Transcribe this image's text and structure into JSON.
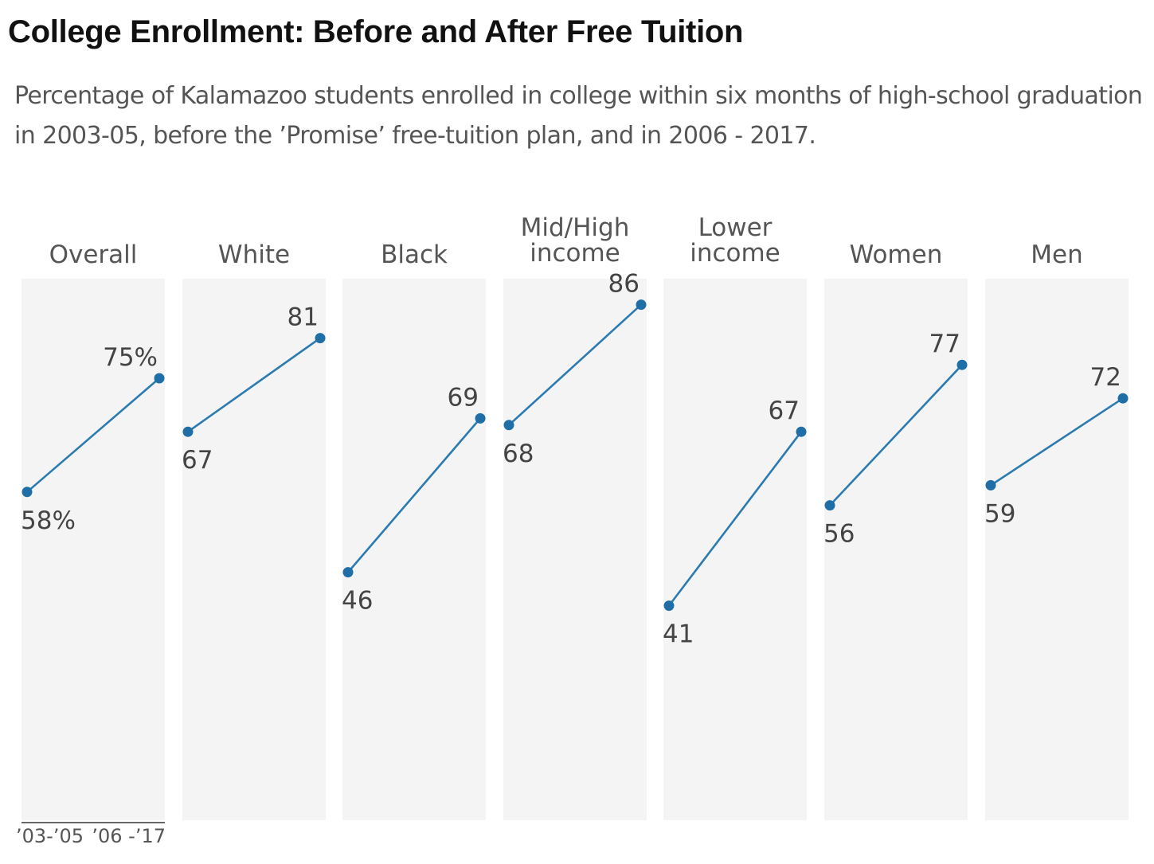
{
  "title": "College Enrollment: Before and After Free Tuition",
  "subtitle": "Percentage of Kalamazoo students enrolled in college within six months of high-school graduation in 2003-05, before the ’Promise’ free-tuition plan, and in 2006 - 2017.",
  "chart_data": {
    "type": "line",
    "categories": [
      "’03-’05",
      "’06 -’17"
    ],
    "ylim": [
      0,
      100
    ],
    "grid": false,
    "panels": [
      {
        "name": "Overall",
        "title_lines": [
          "Overall"
        ],
        "values": [
          58,
          75
        ],
        "labels": [
          "58%",
          "75%"
        ]
      },
      {
        "name": "White",
        "title_lines": [
          "White"
        ],
        "values": [
          67,
          81
        ],
        "labels": [
          "67",
          "81"
        ]
      },
      {
        "name": "Black",
        "title_lines": [
          "Black"
        ],
        "values": [
          46,
          69
        ],
        "labels": [
          "46",
          "69"
        ]
      },
      {
        "name": "Mid/High income",
        "title_lines": [
          "Mid/High",
          "income"
        ],
        "values": [
          68,
          86
        ],
        "labels": [
          "68",
          "86"
        ]
      },
      {
        "name": "Lower income",
        "title_lines": [
          "Lower",
          "income"
        ],
        "values": [
          41,
          67
        ],
        "labels": [
          "41",
          "67"
        ]
      },
      {
        "name": "Women",
        "title_lines": [
          "Women"
        ],
        "values": [
          56,
          77
        ],
        "labels": [
          "56",
          "77"
        ]
      },
      {
        "name": "Men",
        "title_lines": [
          "Men"
        ],
        "values": [
          59,
          72
        ],
        "labels": [
          "59",
          "72"
        ]
      }
    ]
  },
  "colors": {
    "line": "#2b7bb0",
    "point": "#1f6fa6",
    "panel": "#f4f4f4",
    "text": "#555555"
  }
}
